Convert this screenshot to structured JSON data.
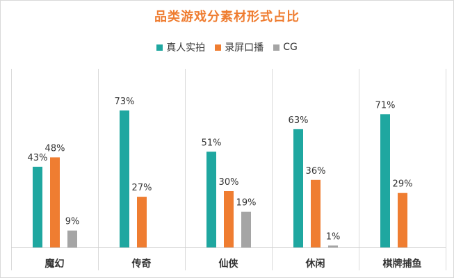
{
  "chart_data": {
    "type": "bar",
    "title": "品类游戏分素材形式占比",
    "categories": [
      "魔幻",
      "传奇",
      "仙侠",
      "休闲",
      "棋牌捕鱼"
    ],
    "series": [
      {
        "name": "真人实拍",
        "color": "#1fa7a0",
        "values": [
          43,
          73,
          51,
          63,
          71
        ],
        "labels": [
          "43%",
          "73%",
          "51%",
          "63%",
          "71%"
        ]
      },
      {
        "name": "录屏口播",
        "color": "#ef7d31",
        "values": [
          48,
          27,
          30,
          36,
          29
        ],
        "labels": [
          "48%",
          "27%",
          "30%",
          "36%",
          "29%"
        ]
      },
      {
        "name": "CG",
        "color": "#a5a5a5",
        "values": [
          9,
          null,
          19,
          1,
          null
        ],
        "labels": [
          "9%",
          "",
          "19%",
          "1%",
          ""
        ]
      }
    ],
    "value_unit": "%",
    "ylim": [
      0,
      80
    ],
    "grid": false,
    "category_separators": true,
    "legend_position": "top"
  }
}
